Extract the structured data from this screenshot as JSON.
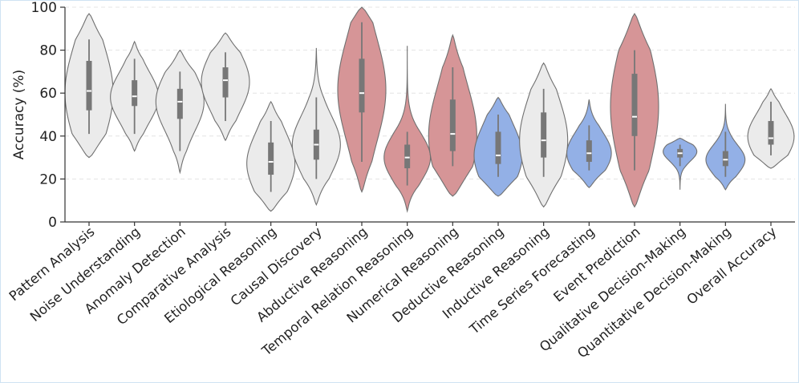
{
  "chart_data": {
    "type": "violin",
    "title": "",
    "xlabel": "",
    "ylabel": "Accuracy (%)",
    "ylim": [
      0,
      100
    ],
    "yticks": [
      0,
      20,
      40,
      60,
      80,
      100
    ],
    "grid": "horizontal dashed",
    "categories": [
      "Pattern Analysis",
      "Noise Understanding",
      "Anomaly Detection",
      "Comparative Analysis",
      "Etiological Reasoning",
      "Causal Discovery",
      "Abductive Reasoning",
      "Temporal Relation Reasoning",
      "Numerical Reasoning",
      "Deductive Reasoning",
      "Inductive Reasoning",
      "Time Series Forecasting",
      "Event Prediction",
      "Qualitative Decision-Making",
      "Quantitative Decision-Making",
      "Overall Accuracy"
    ],
    "colors": {
      "gray": "#ebebeb",
      "red": "#d69597",
      "blue": "#93b0e6"
    },
    "series": [
      {
        "category": "Pattern Analysis",
        "color": "gray",
        "min": 41,
        "q1": 52,
        "median": 61,
        "q3": 75,
        "max": 85,
        "kde_min": 30,
        "kde_max": 97,
        "widest_at": 60
      },
      {
        "category": "Noise Understanding",
        "color": "gray",
        "min": 41,
        "q1": 54,
        "median": 58.5,
        "q3": 66,
        "max": 76,
        "kde_min": 33,
        "kde_max": 84,
        "widest_at": 58
      },
      {
        "category": "Anomaly Detection",
        "color": "gray",
        "min": 33,
        "q1": 48,
        "median": 56,
        "q3": 62,
        "max": 70,
        "kde_min": 23,
        "kde_max": 80,
        "widest_at": 56
      },
      {
        "category": "Comparative Analysis",
        "color": "gray",
        "min": 47,
        "q1": 58,
        "median": 66,
        "q3": 72,
        "max": 79,
        "kde_min": 38,
        "kde_max": 88,
        "widest_at": 65
      },
      {
        "category": "Etiological Reasoning",
        "color": "gray",
        "min": 14,
        "q1": 22,
        "median": 28,
        "q3": 37,
        "max": 47,
        "kde_min": 5,
        "kde_max": 56,
        "widest_at": 27
      },
      {
        "category": "Causal Discovery",
        "color": "gray",
        "min": 20,
        "q1": 29,
        "median": 36,
        "q3": 43,
        "max": 58,
        "kde_min": 8,
        "kde_max": 81,
        "widest_at": 36
      },
      {
        "category": "Abductive Reasoning",
        "color": "red",
        "min": 28,
        "q1": 51,
        "median": 60,
        "q3": 76,
        "max": 93,
        "kde_min": 14,
        "kde_max": 100,
        "widest_at": 62
      },
      {
        "category": "Temporal Relation Reasoning",
        "color": "red",
        "min": 17,
        "q1": 25,
        "median": 30,
        "q3": 36,
        "max": 42,
        "kde_min": 5,
        "kde_max": 82,
        "widest_at": 30
      },
      {
        "category": "Numerical Reasoning",
        "color": "red",
        "min": 26,
        "q1": 33,
        "median": 41,
        "q3": 57,
        "max": 72,
        "kde_min": 12,
        "kde_max": 87,
        "widest_at": 40
      },
      {
        "category": "Deductive Reasoning",
        "color": "blue",
        "min": 21,
        "q1": 27,
        "median": 31,
        "q3": 42,
        "max": 50,
        "kde_min": 12,
        "kde_max": 58,
        "widest_at": 31
      },
      {
        "category": "Inductive Reasoning",
        "color": "gray",
        "min": 21,
        "q1": 30,
        "median": 38,
        "q3": 51,
        "max": 62,
        "kde_min": 7,
        "kde_max": 74,
        "widest_at": 38
      },
      {
        "category": "Time Series Forecasting",
        "color": "blue",
        "min": 24,
        "q1": 28,
        "median": 32,
        "q3": 38,
        "max": 45,
        "kde_min": 16,
        "kde_max": 57,
        "widest_at": 32
      },
      {
        "category": "Event Prediction",
        "color": "red",
        "min": 24,
        "q1": 40,
        "median": 49,
        "q3": 69,
        "max": 80,
        "kde_min": 7,
        "kde_max": 97,
        "widest_at": 55
      },
      {
        "category": "Qualitative Decision-Making",
        "color": "blue",
        "min": 26,
        "q1": 30,
        "median": 32,
        "q3": 34,
        "max": 36,
        "kde_min": 15,
        "kde_max": 39,
        "widest_at": 33
      },
      {
        "category": "Quantitative Decision-Making",
        "color": "blue",
        "min": 21,
        "q1": 26,
        "median": 29,
        "q3": 33,
        "max": 42,
        "kde_min": 15,
        "kde_max": 55,
        "widest_at": 29
      },
      {
        "category": "Overall Accuracy",
        "color": "gray",
        "min": 31,
        "q1": 36,
        "median": 39,
        "q3": 47,
        "max": 56,
        "kde_min": 25,
        "kde_max": 62,
        "widest_at": 40
      }
    ]
  }
}
